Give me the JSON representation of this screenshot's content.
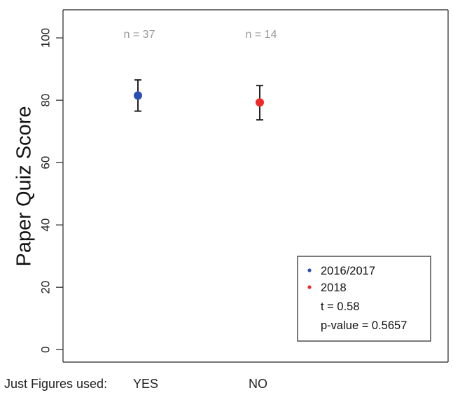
{
  "chart_data": {
    "type": "scatter",
    "ylabel": "Paper Quiz Score",
    "xlabel": "",
    "ylim": [
      -4,
      109
    ],
    "yticks": [
      0,
      20,
      40,
      60,
      80,
      100
    ],
    "ytick_labels": [
      "0",
      "20",
      "40",
      "60",
      "80",
      "100"
    ],
    "grid": false,
    "legend_position": "bottom-right",
    "series": [
      {
        "name": "2016/2017",
        "color": "#2d4fb3",
        "mean": 81.5,
        "lower": 76.5,
        "upper": 86.5,
        "n_label": "n = 37"
      },
      {
        "name": "2018",
        "color": "#ee2a2a",
        "mean": 79.3,
        "lower": 73.7,
        "upper": 84.7,
        "n_label": "n = 14"
      }
    ],
    "legend_stats": [
      "t = 0.58",
      "p-value = 0.5657"
    ]
  },
  "footer": {
    "label": "Just Figures used:",
    "values": [
      "YES",
      "NO"
    ]
  }
}
